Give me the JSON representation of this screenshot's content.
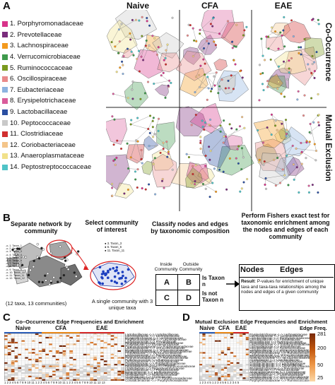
{
  "panels": {
    "a": "A",
    "b": "B",
    "c": "C",
    "d": "D"
  },
  "legend": [
    {
      "label": "1. Porphyromonadaceae",
      "color": "#d8338a"
    },
    {
      "label": "2. Prevotellaceae",
      "color": "#7a2c7c"
    },
    {
      "label": "3. Lachnospiraceae",
      "color": "#f39a1e"
    },
    {
      "label": "4. Verrucomicrobiaceae",
      "color": "#3f9a4c"
    },
    {
      "label": "5. Ruminococcaceae",
      "color": "#7a9a1e"
    },
    {
      "label": "6. Oscillospiraceae",
      "color": "#e98a8a"
    },
    {
      "label": "7. Eubacteriaceae",
      "color": "#8db3e0"
    },
    {
      "label": "8. Erysipelotrichaceae",
      "color": "#d95c9b"
    },
    {
      "label": "9. Lactobacillaceae",
      "color": "#2b4fa2"
    },
    {
      "label": "10. Peptococcaceae",
      "color": "#c9c9c9"
    },
    {
      "label": "11. Clostridiaceae",
      "color": "#d12f2f"
    },
    {
      "label": "12. Coriobacteriaceae",
      "color": "#f4c58a"
    },
    {
      "label": "13. Anaeroplasmataceae",
      "color": "#f1e18a"
    },
    {
      "label": "14. Peptostreptococcaceae",
      "color": "#4fc3c7"
    }
  ],
  "a_columns": [
    "Naive",
    "CFA",
    "EAE"
  ],
  "a_rows": [
    "Co-Occurrence",
    "Mutual Exclusion"
  ],
  "b": {
    "step1": "Separate network by community",
    "step2": "Select community of interest",
    "step3": "Classify nodes and edges by taxonomic composition",
    "step4": "Perform Fishers exact test for taxonomic enrichment among the nodes and edges of each community",
    "net_caption": "(12 taxa, 13 communities)",
    "community_caption": "A single community with 3 unique taxa",
    "inside": "Inside Community",
    "outside": "Outside Community",
    "cells": [
      "A",
      "B",
      "C",
      "D"
    ],
    "is_taxon": "Is Taxon n",
    "is_not_taxon": "Is not Taxon n",
    "nodes": "Nodes",
    "edges": "Edges",
    "result_label": "Result",
    "result_text": ": P-values for enrichment of unique taxa and taxa-taxa relationships among the nodes and edges of a given community",
    "mini_legend": [
      "1. Taxon_1",
      "2. Taxon_2",
      "3. Taxon_3",
      "4. Taxon_4",
      "5. Taxon_5",
      "6. Taxon_6",
      "7. Taxon_7",
      "8. Taxon_8",
      "9. Taxon_9",
      "10. Taxon_10",
      "11. Taxon_11",
      "12. Taxon_12"
    ],
    "community_legend": [
      "3. Taxon_3",
      "6. Taxon_6",
      "11. Taxon_11"
    ]
  },
  "c": {
    "title": "Co–Occurrence Edge Frequencies and Enrichment",
    "groups": [
      "Naive",
      "CFA",
      "EAE"
    ],
    "group_colors": [
      "#2d5fb8",
      "#e98a1c",
      "#d62a2a"
    ],
    "ticks": "1 2 3 4 5 6 7 8 9 10 11   1 2 3 4 5 6 7 8 9 10 11   1 2 3 4 5 6 7 8 9 10 11 12 13",
    "rows": [
      "Lactobacillaceae <=> Lactobacillaceae",
      "Lachnospiraceae <=> Lachnospiraceae",
      "Erysipelotrichaceae <=> Lachnospiraceae",
      "Porphyromonadaceae <=> Lachnospiraceae",
      "Lachnospiraceae <=> Prevotellaceae",
      "Porphyromonadaceae <=> Prevotellaceae",
      "Clostridiaceae <=> Erysipelotrichaceae",
      "Porphyromonadaceae <=> Porphyromonadaceae",
      "Lachnospiraceae <=> Verrucomicrobiaceae",
      "Erysipelotrichaceae <=> Verrucomicrobiaceae",
      "Porphyromonadaceae <=> Verrucomicrobiaceae",
      "Prevotellaceae <=> Verrucomicrobiaceae",
      "Lachnospiraceae <=> Ruminococcaceae",
      "Ruminococcaceae <=> Verrucomicrobiaceae",
      "Porphyromonadaceae <=> Ruminococcaceae",
      "Ruminococcaceae <=> Ruminococcaceae",
      "Lachnospiraceae <=> Oscillospiraceae",
      "Oscillospiraceae <=> Porphyromonadaceae",
      "Lachnospiraceae <=> Clostridiaceae",
      "Peptostreptococcaceae <=> Porphyromonadaceae",
      "Clostridiaceae <=> Peptostreptococcaceae",
      "Lachnospiraceae <=> Peptococcaceae",
      "Eubacteriaceae <=> Lachnospiraceae",
      "Eubacteriaceae <=> Ruminococcaceae",
      "Clostridiaceae <=> Ruminococcaceae",
      "Clostridiaceae <=> Clostridiaceae",
      "Anaeroplasmataceae <=> Porphyromonadaceae",
      "Coriobacteriaceae <=> Porphyromonadaceae"
    ]
  },
  "d": {
    "title": "Mutual Exclusion Edge Frequencies and Enrichment",
    "groups": [
      "Naive",
      "CFA",
      "EAE"
    ],
    "group_colors": [
      "#2d5fb8",
      "#e98a1c",
      "#d62a2a"
    ],
    "ticks": "1 2 3 4 5 1 2 3 4 5 6 1 2 3 4 5",
    "rows": [
      "Erysipelotrichaceae <=> Lachnospiraceae",
      "Lachnospiraceae <=> Lactobacillaceae",
      "Lactobacillaceae <=> Porphyromonadaceae",
      "Lactobacillaceae <=> Prevotellaceae",
      "Prevotellaceae <=> Ruminococcaceae",
      "Prevotellaceae <=> Verrucomicrobiaceae",
      "Lachnospiraceae <=> Porphyromonadaceae",
      "Lachnospiraceae <=> Prevotellaceae",
      "Lactobacillaceae <=> Ruminococcaceae",
      "Lactobacillaceae <=> Verrucomicrobiaceae",
      "Oscillospiraceae <=> Porphyromonadaceae",
      "Porphyromonadaceae <=> Ruminococcaceae",
      "Lachnospiraceae <=> Verrucomicrobiaceae",
      "Porphyromonadaceae <=> Verrucomicrobiaceae",
      "Ruminococcaceae <=> Verrucomicrobiaceae",
      "Clostridiaceae <=> Lactobacillaceae",
      "Lactobacillaceae <=> Oscillospiraceae",
      "Coriobacteriaceae <=> Lachnospiraceae",
      "Coriobacteriaceae <=> Prevotellaceae",
      "Coriobacteriaceae <=> Verrucomicrobiaceae",
      "Erysipelotrichaceae <=> Prevotellaceae",
      "Clostridiaceae <=> Peptococcaceae",
      "Anaeroplasmataceae <=> Clostridiaceae",
      "Clostridiaceae <=> Verrucomicrobiaceae",
      "Lactobacillaceae <=> Lachnospiraceae",
      "Lactobacillaceae <=> Verrucomicrobiaceae",
      "Oscillospiraceae <=> Verrucomicrobiaceae",
      "Porphyromonadaceae <=> Ruminococcaceae"
    ],
    "colorbar_title": "Edge Freq.",
    "colorbar_ticks": [
      "281",
      "200",
      "50",
      "25"
    ],
    "colorbar_colors": [
      "#7a2a08",
      "#c2570e",
      "#ef9a4a",
      "#fbd7a6"
    ]
  }
}
